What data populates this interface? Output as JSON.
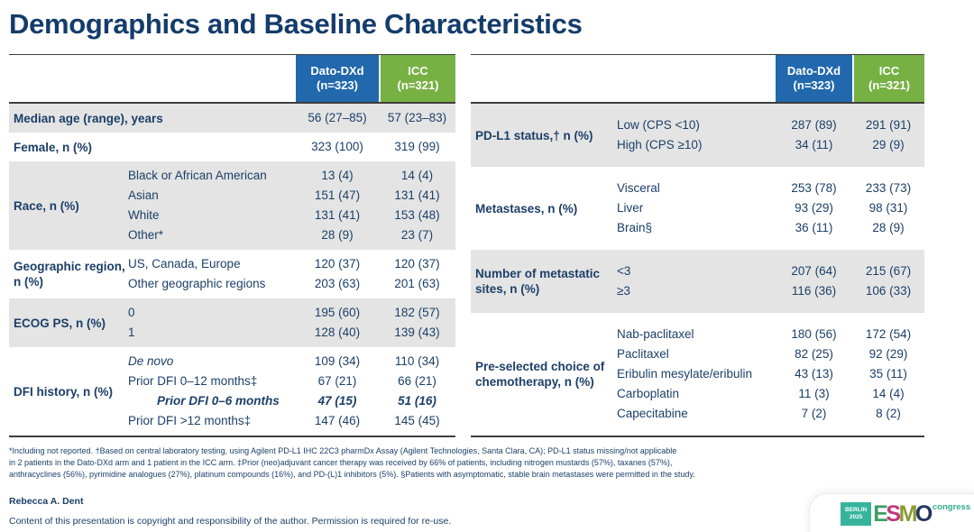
{
  "title": "Demographics and Baseline Characteristics",
  "colors": {
    "dato_header": "#2268ad",
    "icc_header": "#77b144",
    "row_shade": "#e4e4e4",
    "text_navy": "#1c3f68"
  },
  "columns": {
    "dato_line1": "Dato-DXd",
    "dato_line2": "(n=323)",
    "icc_line1": "ICC",
    "icc_line2": "(n=321)"
  },
  "left_table": {
    "rows": [
      {
        "label": "Median age (range), years",
        "span": true,
        "items": [
          {
            "dato": "56 (27–85)",
            "icc": "57 (23–83)"
          }
        ]
      },
      {
        "label": "Female, n (%)",
        "span": true,
        "items": [
          {
            "dato": "323 (100)",
            "icc": "319 (99)"
          }
        ]
      },
      {
        "label": "Race, n (%)",
        "items": [
          {
            "sub": "Black or African American",
            "dato": "13 (4)",
            "icc": "14 (4)"
          },
          {
            "sub": "Asian",
            "dato": "151 (47)",
            "icc": "131 (41)"
          },
          {
            "sub": "White",
            "dato": "131 (41)",
            "icc": "153 (48)"
          },
          {
            "sub": "Other*",
            "dato": "28 (9)",
            "icc": "23 (7)"
          }
        ]
      },
      {
        "label": "Geographic region, n (%)",
        "items": [
          {
            "sub": "US, Canada, Europe",
            "dato": "120 (37)",
            "icc": "120 (37)"
          },
          {
            "sub": "Other geographic regions",
            "dato": "203 (63)",
            "icc": "201 (63)"
          }
        ]
      },
      {
        "label": "ECOG PS, n (%)",
        "items": [
          {
            "sub": "0",
            "dato": "195 (60)",
            "icc": "182 (57)"
          },
          {
            "sub": "1",
            "dato": "128 (40)",
            "icc": "139 (43)"
          }
        ]
      },
      {
        "label": "DFI history, n (%)",
        "items": [
          {
            "sub": "De novo",
            "style": "italic",
            "dato": "109 (34)",
            "icc": "110 (34)"
          },
          {
            "sub": "Prior DFI 0–12 months‡",
            "dato": "67 (21)",
            "icc": "66 (21)"
          },
          {
            "sub": "Prior DFI 0–6 months",
            "style": "bold-italic",
            "indent": true,
            "dato": "47 (15)",
            "icc": "51 (16)"
          },
          {
            "sub": "Prior DFI >12 months‡",
            "dato": "147 (46)",
            "icc": "145 (45)"
          }
        ]
      }
    ]
  },
  "right_table": {
    "rows": [
      {
        "label": "PD-L1 status,† n (%)",
        "items": [
          {
            "sub": "Low (CPS <10)",
            "dato": "287 (89)",
            "icc": "291 (91)"
          },
          {
            "sub": "High (CPS ≥10)",
            "dato": "34 (11)",
            "icc": "29 (9)"
          }
        ]
      },
      {
        "label": "Metastases, n (%)",
        "items": [
          {
            "sub": "Visceral",
            "dato": "253 (78)",
            "icc": "233 (73)"
          },
          {
            "sub": "Liver",
            "dato": "93 (29)",
            "icc": "98 (31)"
          },
          {
            "sub": "Brain§",
            "dato": "36 (11)",
            "icc": "28 (9)"
          }
        ]
      },
      {
        "label": "Number of metastatic sites, n (%)",
        "items": [
          {
            "sub": "<3",
            "dato": "207 (64)",
            "icc": "215 (67)"
          },
          {
            "sub": "≥3",
            "dato": "116 (36)",
            "icc": "106 (33)"
          }
        ]
      },
      {
        "label": "Pre-selected choice of chemotherapy, n (%)",
        "items": [
          {
            "sub": "Nab-paclitaxel",
            "dato": "180 (56)",
            "icc": "172 (54)"
          },
          {
            "sub": "Paclitaxel",
            "dato": "82 (25)",
            "icc": "92 (29)"
          },
          {
            "sub": "Eribulin mesylate/eribulin",
            "dato": "43 (13)",
            "icc": "35 (11)"
          },
          {
            "sub": "Carboplatin",
            "dato": "11 (3)",
            "icc": "14 (4)"
          },
          {
            "sub": "Capecitabine",
            "dato": "7 (2)",
            "icc": "8 (2)"
          }
        ]
      }
    ]
  },
  "footnotes": [
    "*Including not reported. †Based on central laboratory testing, using Agilent PD-L1 IHC 22C3 pharmDx Assay (Agilent Technologies, Santa Clara, CA); PD-L1 status missing/not applicable",
    "in 2 patients in the Dato-DXd arm and 1 patient in the ICC arm. ‡Prior (neo)adjuvant cancer therapy was received by 66% of patients, including nitrogen mustards (57%), taxanes (57%),",
    "anthracyclines (56%), pyrimidine analogues (27%), platinum compounds (16%), and PD-(L)1 inhibitors (5%). §Patients with asymptomatic, stable brain metastases were permitted in the study."
  ],
  "presenter": "Rebecca A. Dent",
  "copyright": "Content of this presentation is copyright and responsibility of the author. Permission is required for re-use.",
  "logo": {
    "venue_city": "BERLIN",
    "venue_year": "2025",
    "letters": [
      "E",
      "S",
      "M",
      "O"
    ],
    "suffix": "congress"
  }
}
